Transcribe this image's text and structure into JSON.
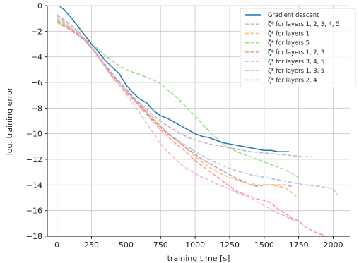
{
  "chart_data": {
    "type": "line",
    "title": "",
    "xlabel": "training time [s]",
    "ylabel": "log. training error",
    "xlim": [
      -70,
      2120
    ],
    "ylim": [
      -18,
      0
    ],
    "xticks": [
      0,
      250,
      500,
      750,
      1000,
      1250,
      1500,
      1750,
      2000
    ],
    "yticks": [
      0,
      -2,
      -4,
      -6,
      -8,
      -10,
      -12,
      -14,
      -16,
      -18
    ],
    "xtick_labels": [
      "0",
      "250",
      "500",
      "750",
      "1000",
      "1250",
      "1500",
      "1750",
      "2000"
    ],
    "ytick_labels": [
      "0",
      "−2",
      "−4",
      "−6",
      "−8",
      "−10",
      "−12",
      "−14",
      "−16",
      "−18"
    ],
    "grid": true,
    "legend_position": "top-right",
    "series": [
      {
        "name": "Gradient descent",
        "color": "#1f77b4",
        "dash": "solid",
        "x": [
          0,
          25,
          50,
          100,
          150,
          200,
          250,
          300,
          350,
          400,
          450,
          500,
          550,
          600,
          650,
          700,
          750,
          800,
          850,
          900,
          950,
          1000,
          1050,
          1100,
          1150,
          1200,
          1250,
          1300,
          1350,
          1400,
          1450,
          1500,
          1550,
          1600,
          1650,
          1680
        ],
        "y": [
          0.3,
          -0.1,
          -0.3,
          -0.9,
          -1.6,
          -2.3,
          -3.0,
          -3.6,
          -4.3,
          -4.8,
          -5.3,
          -6.2,
          -6.8,
          -7.3,
          -7.6,
          -8.2,
          -8.6,
          -8.8,
          -9.1,
          -9.4,
          -9.7,
          -10.0,
          -10.2,
          -10.3,
          -10.5,
          -10.7,
          -10.8,
          -10.9,
          -11.0,
          -11.1,
          -11.2,
          -11.3,
          -11.3,
          -11.4,
          -11.4,
          -11.4
        ]
      },
      {
        "name": "ζ* for layers 1, 2, 3, 4, 5",
        "color": "#aec7e8",
        "dash": "dashed",
        "x": [
          0,
          50,
          100,
          150,
          200,
          250,
          300,
          350,
          400,
          450,
          500,
          550,
          600,
          650,
          700,
          750,
          800,
          850,
          900,
          950,
          1000,
          1100,
          1200,
          1300,
          1400,
          1500,
          1600,
          1700,
          1800,
          1900,
          1950,
          2000,
          2030
        ],
        "y": [
          -0.8,
          -1.2,
          -1.5,
          -2.0,
          -2.6,
          -3.3,
          -4.0,
          -4.8,
          -5.5,
          -6.0,
          -6.6,
          -7.2,
          -7.7,
          -8.3,
          -8.9,
          -9.4,
          -9.9,
          -10.3,
          -10.7,
          -11.0,
          -11.4,
          -12.0,
          -12.5,
          -12.9,
          -13.2,
          -13.4,
          -13.6,
          -13.8,
          -14.0,
          -14.1,
          -14.2,
          -14.3,
          -14.8
        ]
      },
      {
        "name": "ζ* for layers 1",
        "color": "#ffbb78",
        "dash": "dashed",
        "x": [
          0,
          50,
          100,
          150,
          200,
          250,
          300,
          350,
          400,
          450,
          500,
          550,
          600,
          650,
          700,
          750,
          800,
          850,
          900,
          950,
          1000,
          1050,
          1100,
          1150,
          1200,
          1250,
          1300,
          1350,
          1400,
          1450,
          1500,
          1550,
          1600,
          1650,
          1700,
          1740
        ],
        "y": [
          -1.0,
          -1.3,
          -1.7,
          -2.1,
          -2.6,
          -3.2,
          -3.9,
          -4.8,
          -5.6,
          -6.2,
          -6.7,
          -7.2,
          -7.7,
          -8.3,
          -8.8,
          -9.4,
          -9.9,
          -10.4,
          -10.8,
          -11.3,
          -11.8,
          -12.2,
          -12.6,
          -12.9,
          -13.2,
          -13.4,
          -13.6,
          -13.8,
          -13.9,
          -14.0,
          -14.0,
          -14.0,
          -14.1,
          -14.2,
          -14.6,
          -15.0
        ]
      },
      {
        "name": "ζ* for layers 5",
        "color": "#98df8a",
        "dash": "dashed",
        "x": [
          0,
          50,
          100,
          150,
          200,
          250,
          300,
          350,
          400,
          450,
          500,
          550,
          600,
          650,
          700,
          750,
          800,
          850,
          900,
          950,
          1000,
          1050,
          1100,
          1150,
          1200,
          1250,
          1300,
          1350,
          1400,
          1450,
          1500,
          1550,
          1600,
          1650,
          1700,
          1750
        ],
        "y": [
          -1.2,
          -1.5,
          -1.8,
          -2.2,
          -2.6,
          -3.0,
          -3.4,
          -3.9,
          -4.3,
          -4.7,
          -5.0,
          -5.2,
          -5.4,
          -5.6,
          -5.8,
          -6.1,
          -6.6,
          -7.0,
          -7.5,
          -8.1,
          -8.6,
          -9.2,
          -9.8,
          -10.3,
          -10.8,
          -11.1,
          -11.4,
          -11.6,
          -11.8,
          -12.0,
          -12.2,
          -12.4,
          -12.6,
          -12.8,
          -13.1,
          -13.4
        ]
      },
      {
        "name": "ζ* for layers 1, 2, 3",
        "color": "#ff9896",
        "dash": "dashed",
        "x": [
          0,
          50,
          100,
          150,
          200,
          250,
          300,
          350,
          400,
          450,
          500,
          550,
          600,
          650,
          700,
          750,
          800,
          850,
          900,
          950,
          1000,
          1050,
          1100,
          1150,
          1200,
          1250,
          1300,
          1350,
          1400,
          1450,
          1500,
          1550,
          1600,
          1650,
          1700,
          1750,
          1800,
          1850,
          1900,
          1950
        ],
        "y": [
          -1.1,
          -1.4,
          -1.8,
          -2.2,
          -2.7,
          -3.3,
          -4.0,
          -4.8,
          -5.6,
          -6.2,
          -6.8,
          -7.3,
          -7.9,
          -8.5,
          -9.1,
          -9.7,
          -10.2,
          -10.7,
          -11.1,
          -11.6,
          -12.1,
          -12.5,
          -12.9,
          -13.3,
          -13.7,
          -14.1,
          -14.5,
          -14.7,
          -14.9,
          -15.1,
          -15.2,
          -15.4,
          -15.9,
          -16.2,
          -16.6,
          -16.8,
          -17.3,
          -17.6,
          -17.8,
          -18.0
        ]
      },
      {
        "name": "ζ* for layers 3, 4, 5",
        "color": "#c5b0d5",
        "dash": "dashed",
        "x": [
          0,
          50,
          100,
          150,
          200,
          250,
          300,
          350,
          400,
          450,
          500,
          550,
          600,
          650,
          700,
          750,
          800,
          850,
          900,
          950,
          1000,
          1100,
          1200,
          1300,
          1400,
          1500,
          1600,
          1700,
          1780,
          1850
        ],
        "y": [
          -0.7,
          -1.1,
          -1.5,
          -2.0,
          -2.6,
          -3.2,
          -3.9,
          -4.6,
          -5.3,
          -5.9,
          -6.5,
          -7.1,
          -7.6,
          -8.1,
          -8.6,
          -9.0,
          -9.4,
          -9.7,
          -10.0,
          -10.3,
          -10.5,
          -10.8,
          -11.0,
          -11.2,
          -11.4,
          -11.5,
          -11.6,
          -11.7,
          -11.8,
          -11.8
        ]
      },
      {
        "name": "ζ* for layers 1, 3, 5",
        "color": "#c49c94",
        "dash": "dashed",
        "x": [
          0,
          50,
          100,
          150,
          200,
          250,
          300,
          350,
          400,
          450,
          500,
          550,
          600,
          650,
          700,
          750,
          800,
          850,
          900,
          950,
          1000,
          1050,
          1100,
          1150,
          1200,
          1250,
          1300,
          1350,
          1400,
          1450,
          1500,
          1550,
          1600,
          1650,
          1700
        ],
        "y": [
          -1.3,
          -1.6,
          -1.9,
          -2.3,
          -2.7,
          -3.3,
          -4.0,
          -4.7,
          -5.4,
          -6.0,
          -6.6,
          -7.2,
          -7.8,
          -8.4,
          -9.0,
          -9.5,
          -10.0,
          -10.4,
          -10.8,
          -11.2,
          -11.6,
          -12.0,
          -12.3,
          -12.6,
          -12.9,
          -13.2,
          -13.5,
          -13.7,
          -14.0,
          -14.1,
          -14.0,
          -14.0,
          -14.0,
          -14.0,
          -14.1
        ]
      },
      {
        "name": "ζ* for layers 2, 4",
        "color": "#f7b6d2",
        "dash": "dashed",
        "x": [
          0,
          50,
          100,
          150,
          200,
          250,
          300,
          350,
          400,
          450,
          500,
          550,
          600,
          650,
          700,
          750,
          800,
          850,
          900,
          950,
          1000,
          1050,
          1100,
          1150,
          1200,
          1250,
          1300,
          1350,
          1400,
          1450,
          1500,
          1550,
          1600,
          1650,
          1700,
          1720
        ],
        "y": [
          -1.1,
          -1.4,
          -1.7,
          -2.1,
          -2.6,
          -3.2,
          -3.9,
          -4.7,
          -5.5,
          -6.2,
          -6.9,
          -7.6,
          -8.4,
          -9.2,
          -10.0,
          -10.8,
          -11.4,
          -11.9,
          -12.4,
          -12.8,
          -13.1,
          -13.4,
          -13.6,
          -13.9,
          -14.1,
          -14.3,
          -14.6,
          -14.8,
          -15.0,
          -15.3,
          -15.6,
          -15.9,
          -16.2,
          -16.4,
          -16.7,
          -16.8
        ]
      }
    ]
  }
}
